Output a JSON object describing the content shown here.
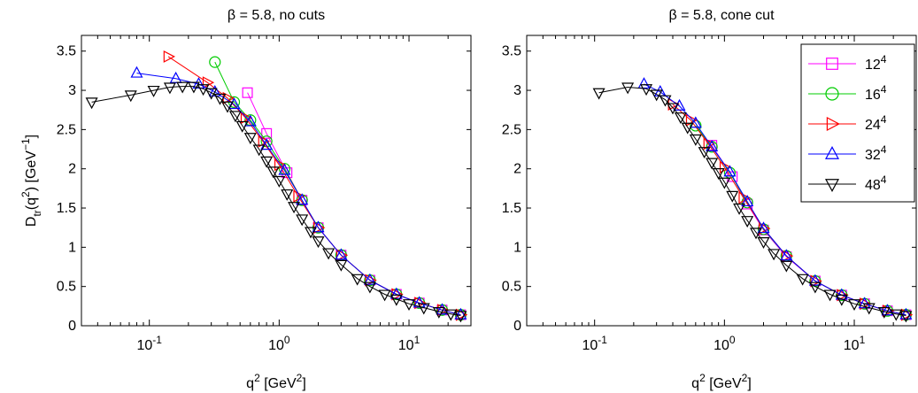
{
  "chart_data": [
    {
      "type": "scatter",
      "title": "β = 5.8, no cuts",
      "xlabel": "q² [GeV²]",
      "ylabel": "D_tr(q²) [GeV⁻¹]",
      "xscale": "log",
      "xlim": [
        0.03,
        30
      ],
      "ylim": [
        0,
        3.7
      ],
      "grid": false,
      "series": [
        {
          "name": "12⁴",
          "color": "#ff00ff",
          "marker": "square",
          "x": [
            0.57,
            0.8,
            1.15,
            1.5,
            2,
            3,
            5,
            8,
            12,
            18,
            25
          ],
          "y": [
            2.97,
            2.45,
            1.95,
            1.6,
            1.25,
            0.9,
            0.58,
            0.4,
            0.29,
            0.2,
            0.14
          ]
        },
        {
          "name": "16⁴",
          "color": "#00cc00",
          "marker": "circle",
          "x": [
            0.32,
            0.45,
            0.6,
            0.8,
            1.1,
            1.5,
            2,
            3,
            5,
            8,
            12,
            18,
            25
          ],
          "y": [
            3.36,
            2.85,
            2.62,
            2.35,
            2.0,
            1.6,
            1.25,
            0.9,
            0.58,
            0.4,
            0.29,
            0.2,
            0.14
          ]
        },
        {
          "name": "24⁴",
          "color": "#ff0000",
          "marker": "triangle-right",
          "x": [
            0.14,
            0.28,
            0.4,
            0.55,
            0.75,
            1,
            1.4,
            2,
            3,
            5,
            8,
            12,
            18,
            25
          ],
          "y": [
            3.43,
            3.1,
            2.9,
            2.65,
            2.35,
            2.05,
            1.65,
            1.25,
            0.9,
            0.58,
            0.4,
            0.29,
            0.2,
            0.14
          ]
        },
        {
          "name": "32⁴",
          "color": "#0000ff",
          "marker": "triangle-up",
          "x": [
            0.08,
            0.16,
            0.24,
            0.32,
            0.45,
            0.6,
            0.8,
            1.1,
            1.5,
            2,
            3,
            5,
            8,
            12,
            18,
            25
          ],
          "y": [
            3.22,
            3.15,
            3.08,
            2.98,
            2.82,
            2.6,
            2.3,
            1.98,
            1.6,
            1.25,
            0.9,
            0.58,
            0.4,
            0.29,
            0.2,
            0.14
          ]
        },
        {
          "name": "48⁴",
          "color": "#000000",
          "marker": "triangle-down",
          "x": [
            0.036,
            0.072,
            0.108,
            0.144,
            0.18,
            0.22,
            0.26,
            0.3,
            0.35,
            0.4,
            0.46,
            0.52,
            0.6,
            0.7,
            0.8,
            0.9,
            1.0,
            1.15,
            1.3,
            1.5,
            1.75,
            2.0,
            2.4,
            3.0,
            4.0,
            5.0,
            6.5,
            8.0,
            10.0,
            13.0,
            17.0,
            21.0,
            25.0
          ],
          "y": [
            2.85,
            2.94,
            3.0,
            3.04,
            3.05,
            3.05,
            3.02,
            2.97,
            2.9,
            2.8,
            2.68,
            2.55,
            2.4,
            2.25,
            2.1,
            1.97,
            1.85,
            1.68,
            1.52,
            1.36,
            1.2,
            1.08,
            0.93,
            0.78,
            0.6,
            0.5,
            0.4,
            0.34,
            0.28,
            0.23,
            0.18,
            0.15,
            0.13
          ]
        }
      ]
    },
    {
      "type": "scatter",
      "title": "β = 5.8, cone cut",
      "xlabel": "q² [GeV²]",
      "ylabel": "",
      "xscale": "log",
      "xlim": [
        0.03,
        30
      ],
      "ylim": [
        0,
        3.7
      ],
      "grid": false,
      "legend_position": "top-right",
      "series": [
        {
          "name": "12⁴",
          "color": "#ff00ff",
          "marker": "square",
          "x": [
            0.8,
            1.15,
            1.5,
            2,
            3,
            5,
            8,
            12,
            18,
            25
          ],
          "y": [
            2.3,
            1.9,
            1.55,
            1.22,
            0.88,
            0.57,
            0.39,
            0.28,
            0.19,
            0.14
          ]
        },
        {
          "name": "16⁴",
          "color": "#00cc00",
          "marker": "circle",
          "x": [
            0.6,
            0.8,
            1.1,
            1.5,
            2,
            3,
            5,
            8,
            12,
            18,
            25
          ],
          "y": [
            2.55,
            2.28,
            1.95,
            1.57,
            1.23,
            0.89,
            0.57,
            0.39,
            0.28,
            0.19,
            0.14
          ]
        },
        {
          "name": "24⁴",
          "color": "#ff0000",
          "marker": "triangle-right",
          "x": [
            0.4,
            0.55,
            0.75,
            1,
            1.4,
            2,
            3,
            5,
            8,
            12,
            18,
            25
          ],
          "y": [
            2.82,
            2.62,
            2.32,
            2.02,
            1.63,
            1.24,
            0.89,
            0.57,
            0.39,
            0.28,
            0.19,
            0.14
          ]
        },
        {
          "name": "32⁴",
          "color": "#0000ff",
          "marker": "triangle-up",
          "x": [
            0.24,
            0.32,
            0.45,
            0.6,
            0.8,
            1.1,
            1.5,
            2,
            3,
            5,
            8,
            12,
            18,
            25
          ],
          "y": [
            3.08,
            2.98,
            2.8,
            2.58,
            2.28,
            1.96,
            1.58,
            1.24,
            0.89,
            0.57,
            0.39,
            0.28,
            0.19,
            0.14
          ]
        },
        {
          "name": "48⁴",
          "color": "#000000",
          "marker": "triangle-down",
          "x": [
            0.108,
            0.18,
            0.25,
            0.3,
            0.35,
            0.4,
            0.46,
            0.52,
            0.6,
            0.7,
            0.8,
            0.9,
            1.0,
            1.15,
            1.3,
            1.5,
            1.75,
            2.0,
            2.4,
            3.0,
            4.0,
            5.0,
            6.5,
            8.0,
            10.0,
            13.0,
            17.0,
            21.0,
            25.0
          ],
          "y": [
            2.97,
            3.04,
            3.02,
            2.95,
            2.88,
            2.78,
            2.66,
            2.53,
            2.38,
            2.22,
            2.08,
            1.95,
            1.83,
            1.66,
            1.5,
            1.34,
            1.19,
            1.07,
            0.92,
            0.77,
            0.6,
            0.5,
            0.4,
            0.34,
            0.28,
            0.23,
            0.18,
            0.15,
            0.13
          ]
        }
      ]
    }
  ]
}
